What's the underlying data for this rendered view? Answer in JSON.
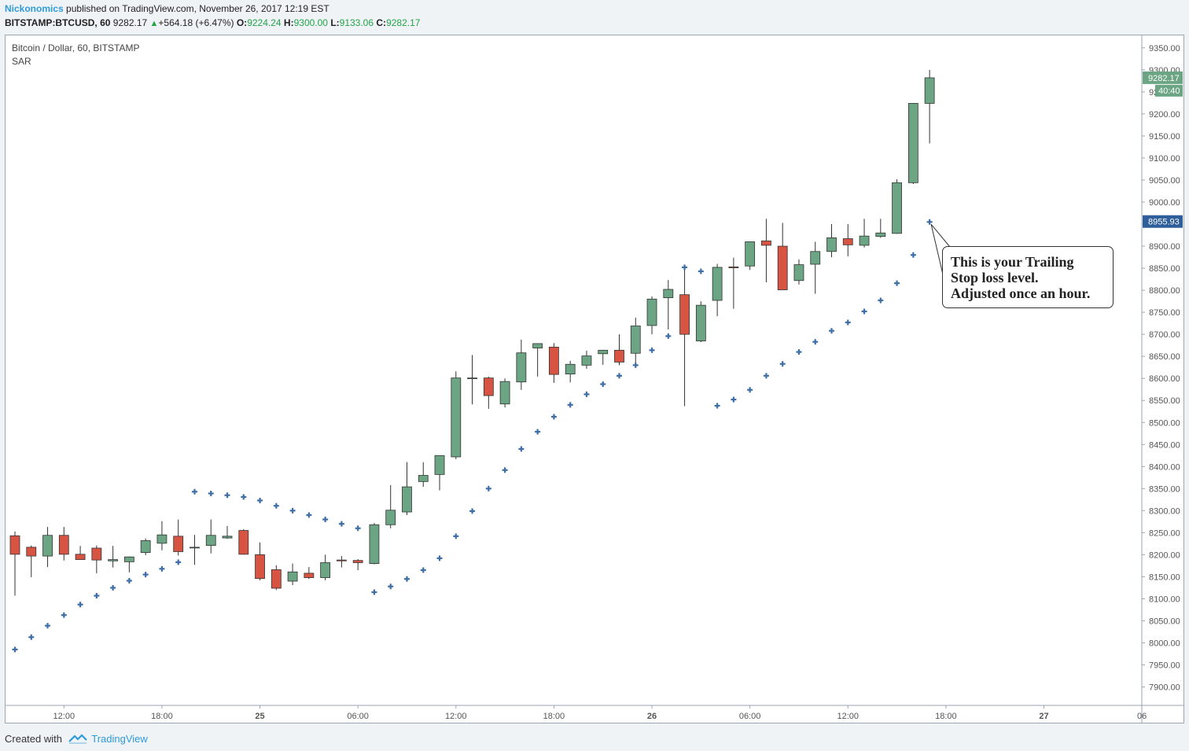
{
  "header": {
    "author": "Nickonomics",
    "published_text": "published on TradingView.com, November 26, 2017 12:19 EST",
    "symbol": "BITSTAMP:BTCUSD, 60",
    "last": "9282.17",
    "change_arrow": "▲",
    "change": "+564.18 (+6.47%)",
    "o_label": "O:",
    "o_value": "9224.24",
    "h_label": "H:",
    "h_value": "9300.00",
    "l_label": "L:",
    "l_value": "9133.06",
    "c_label": "C:",
    "c_value": "9282.17"
  },
  "panel": {
    "title": "Bitcoin / Dollar, 60, BITSTAMP",
    "indicator": "SAR"
  },
  "annotation": {
    "lines": [
      "This is your Trailing",
      "Stop loss level.",
      "Adjusted once an hour."
    ]
  },
  "footer": {
    "created_with": "Created with",
    "brand": "TradingView"
  },
  "colors": {
    "up": "#6ba583",
    "down": "#d75442",
    "sar": "#3d6ea8",
    "price_tag": "#6ba583",
    "sar_tag": "#2f5f9a"
  },
  "chart_data": {
    "type": "candlestick",
    "timeframe": "60",
    "ylim": [
      7852,
      9370
    ],
    "y_ticks": [
      "7900.00",
      "7950.00",
      "8000.00",
      "8050.00",
      "8100.00",
      "8150.00",
      "8200.00",
      "8250.00",
      "8300.00",
      "8350.00",
      "8400.00",
      "8450.00",
      "8500.00",
      "8550.00",
      "8600.00",
      "8650.00",
      "8700.00",
      "8750.00",
      "8800.00",
      "8850.00",
      "8900.00",
      "8950.00",
      "9000.00",
      "9050.00",
      "9100.00",
      "9150.00",
      "9200.00",
      "9250.00",
      "9300.00",
      "9350.00"
    ],
    "x_ticks": [
      {
        "label": "12:00",
        "bar": 3
      },
      {
        "label": "18:00",
        "bar": 9
      },
      {
        "label": "25",
        "bar": 15
      },
      {
        "label": "06:00",
        "bar": 21
      },
      {
        "label": "12:00",
        "bar": 27
      },
      {
        "label": "18:00",
        "bar": 33
      },
      {
        "label": "26",
        "bar": 39
      },
      {
        "label": "06:00",
        "bar": 45
      },
      {
        "label": "12:00",
        "bar": 51
      },
      {
        "label": "18:00",
        "bar": 57
      },
      {
        "label": "27",
        "bar": 63
      },
      {
        "label": "06",
        "bar": 69
      }
    ],
    "ohlc": [
      [
        8243,
        8253,
        8107,
        8201
      ],
      [
        8217,
        8221,
        8149,
        8197
      ],
      [
        8197,
        8263,
        8172,
        8244
      ],
      [
        8244,
        8263,
        8187,
        8201
      ],
      [
        8201,
        8220,
        8193,
        8189
      ],
      [
        8215,
        8221,
        8158,
        8188
      ],
      [
        8186,
        8220,
        8171,
        8189
      ],
      [
        8184,
        8196,
        8160,
        8195
      ],
      [
        8205,
        8237,
        8199,
        8232
      ],
      [
        8226,
        8276,
        8210,
        8245
      ],
      [
        8242,
        8280,
        8198,
        8207
      ],
      [
        8216,
        8245,
        8177,
        8217
      ],
      [
        8221,
        8280,
        8203,
        8244
      ],
      [
        8238,
        8265,
        8236,
        8242
      ],
      [
        8255,
        8258,
        8200,
        8201
      ],
      [
        8200,
        8228,
        8142,
        8146
      ],
      [
        8166,
        8176,
        8120,
        8124
      ],
      [
        8140,
        8180,
        8131,
        8161
      ],
      [
        8158,
        8172,
        8145,
        8148
      ],
      [
        8148,
        8200,
        8142,
        8182
      ],
      [
        8188,
        8197,
        8171,
        8186
      ],
      [
        8187,
        8190,
        8165,
        8182
      ],
      [
        8180,
        8272,
        8178,
        8268
      ],
      [
        8268,
        8358,
        8260,
        8301
      ],
      [
        8297,
        8410,
        8290,
        8354
      ],
      [
        8366,
        8410,
        8354,
        8380
      ],
      [
        8382,
        8425,
        8346,
        8425
      ],
      [
        8422,
        8616,
        8417,
        8601
      ],
      [
        8600,
        8653,
        8541,
        8601
      ],
      [
        8601,
        8604,
        8531,
        8561
      ],
      [
        8542,
        8600,
        8534,
        8593
      ],
      [
        8592,
        8688,
        8574,
        8658
      ],
      [
        8669,
        8678,
        8604,
        8679
      ],
      [
        8671,
        8680,
        8590,
        8609
      ],
      [
        8610,
        8640,
        8591,
        8632
      ],
      [
        8630,
        8663,
        8622,
        8651
      ],
      [
        8656,
        8662,
        8631,
        8664
      ],
      [
        8664,
        8700,
        8630,
        8637
      ],
      [
        8657,
        8738,
        8635,
        8719
      ],
      [
        8720,
        8786,
        8700,
        8780
      ],
      [
        8783,
        8823,
        8711,
        8802
      ],
      [
        8790,
        8850,
        8537,
        8700
      ],
      [
        8685,
        8775,
        8682,
        8766
      ],
      [
        8777,
        8860,
        8741,
        8852
      ],
      [
        8853,
        8874,
        8758,
        8851
      ],
      [
        8855,
        8910,
        8846,
        8910
      ],
      [
        8912,
        8962,
        8818,
        8902
      ],
      [
        8900,
        8953,
        8813,
        8801
      ],
      [
        8822,
        8870,
        8813,
        8858
      ],
      [
        8859,
        8910,
        8792,
        8888
      ],
      [
        8888,
        8950,
        8875,
        8919
      ],
      [
        8917,
        8950,
        8877,
        8903
      ],
      [
        8902,
        8962,
        8897,
        8923
      ],
      [
        8922,
        8962,
        8919,
        8930
      ],
      [
        8929,
        9052,
        8928,
        9044
      ],
      [
        9044,
        9225,
        9041,
        9224
      ],
      [
        9224,
        9300,
        9133,
        9282
      ]
    ],
    "psar": [
      [
        0,
        7985
      ],
      [
        1,
        8013
      ],
      [
        2,
        8039
      ],
      [
        3,
        8063
      ],
      [
        4,
        8087
      ],
      [
        5,
        8107
      ],
      [
        6,
        8125
      ],
      [
        7,
        8141
      ],
      [
        8,
        8155
      ],
      [
        9,
        8168
      ],
      [
        10,
        8183
      ],
      [
        11,
        8343
      ],
      [
        12,
        8339
      ],
      [
        13,
        8335
      ],
      [
        14,
        8331
      ],
      [
        15,
        8323
      ],
      [
        16,
        8311
      ],
      [
        17,
        8300
      ],
      [
        18,
        8290
      ],
      [
        19,
        8280
      ],
      [
        20,
        8270
      ],
      [
        21,
        8260
      ],
      [
        22,
        8115
      ],
      [
        23,
        8128
      ],
      [
        24,
        8145
      ],
      [
        25,
        8165
      ],
      [
        26,
        8192
      ],
      [
        27,
        8242
      ],
      [
        28,
        8299
      ],
      [
        29,
        8350
      ],
      [
        30,
        8392
      ],
      [
        31,
        8440
      ],
      [
        32,
        8479
      ],
      [
        33,
        8513
      ],
      [
        34,
        8540
      ],
      [
        35,
        8564
      ],
      [
        36,
        8587
      ],
      [
        37,
        8606
      ],
      [
        38,
        8630
      ],
      [
        39,
        8664
      ],
      [
        40,
        8696
      ],
      [
        41,
        8852
      ],
      [
        42,
        8843
      ],
      [
        43,
        8538
      ],
      [
        44,
        8552
      ],
      [
        45,
        8574
      ],
      [
        46,
        8606
      ],
      [
        47,
        8633
      ],
      [
        48,
        8660
      ],
      [
        49,
        8683
      ],
      [
        50,
        8708
      ],
      [
        51,
        8727
      ],
      [
        52,
        8752
      ],
      [
        53,
        8777
      ],
      [
        54,
        8816
      ],
      [
        55,
        8880
      ],
      [
        56,
        8955
      ]
    ],
    "last_price": {
      "value": 9282.17,
      "label": "9282.17",
      "countdown": "40:40"
    },
    "sar_last": {
      "value": 8955.93,
      "label": "8955.93"
    }
  }
}
